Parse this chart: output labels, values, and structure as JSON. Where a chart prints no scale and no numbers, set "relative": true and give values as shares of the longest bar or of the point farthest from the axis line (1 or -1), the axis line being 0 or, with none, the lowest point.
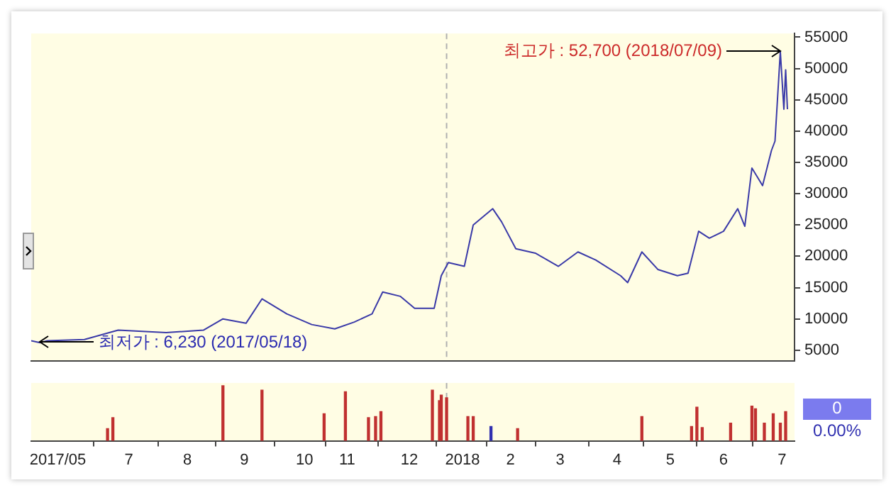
{
  "chart_data": [
    {
      "type": "line",
      "x": [
        "2017-05-13",
        "2017-05-18",
        "2017-05-22",
        "2017-06-12",
        "2017-07-01",
        "2017-07-28",
        "2017-08-18",
        "2017-08-29",
        "2017-09-11",
        "2017-09-20",
        "2017-10-04",
        "2017-10-18",
        "2017-10-31",
        "2017-11-11",
        "2017-11-21",
        "2017-11-27",
        "2017-12-07",
        "2017-12-15",
        "2017-12-26",
        "2017-12-30",
        "2018-01-03",
        "2018-01-12",
        "2018-01-17",
        "2018-01-28",
        "2018-02-02",
        "2018-02-10",
        "2018-02-21",
        "2018-03-06",
        "2018-03-17",
        "2018-03-27",
        "2018-04-10",
        "2018-04-14",
        "2018-04-22",
        "2018-05-01",
        "2018-05-12",
        "2018-05-18",
        "2018-05-24",
        "2018-05-30",
        "2018-06-07",
        "2018-06-15",
        "2018-06-19",
        "2018-06-23",
        "2018-06-29",
        "2018-07-04",
        "2018-07-06",
        "2018-07-09",
        "2018-07-11",
        "2018-07-12",
        "2018-07-13"
      ],
      "values": [
        6500,
        6200,
        6500,
        6700,
        8200,
        7800,
        8200,
        10000,
        9300,
        13200,
        10800,
        9100,
        8400,
        9500,
        10800,
        14300,
        13600,
        11700,
        11700,
        16900,
        19000,
        18400,
        25000,
        27600,
        25500,
        21200,
        20500,
        18400,
        20700,
        19400,
        16900,
        15800,
        20700,
        17900,
        16900,
        17300,
        24000,
        22900,
        24000,
        27600,
        24800,
        34100,
        31300,
        36900,
        38400,
        52700,
        43500,
        49800,
        43500
      ],
      "color": "#3a3aa8",
      "marker": "none",
      "xlim": [
        "2017-05-13",
        "2018-07-17"
      ],
      "ylim": [
        3300,
        55600
      ],
      "yticks": [
        5000,
        10000,
        15000,
        20000,
        25000,
        30000,
        35000,
        40000,
        45000,
        50000,
        55000
      ],
      "tick_labels": "y",
      "grid": false,
      "legend": false,
      "ref_lines": [
        {
          "axis": "x",
          "value": "2018-01-02",
          "color": "#b0b0b0",
          "line_style": "dashed"
        }
      ],
      "annotations": [
        {
          "text": "최고가 : 52,700 (2018/07/09)",
          "x": "2018-07-09",
          "y": 52700
        },
        {
          "text": "최저가 : 6,230 (2017/05/18)",
          "x": "2017-05-18",
          "y": 6230
        }
      ]
    },
    {
      "type": "bar",
      "relative": true,
      "x": [
        "2017-06-25",
        "2017-06-28",
        "2017-08-29",
        "2017-09-20",
        "2017-10-25",
        "2017-11-06",
        "2017-11-19",
        "2017-11-23",
        "2017-11-26",
        "2017-12-25",
        "2017-12-29",
        "2017-12-30",
        "2018-01-02",
        "2018-01-14",
        "2018-01-17",
        "2018-01-27",
        "2018-02-11",
        "2018-04-22",
        "2018-05-20",
        "2018-05-23",
        "2018-05-26",
        "2018-06-11",
        "2018-06-23",
        "2018-06-25",
        "2018-06-30",
        "2018-07-05",
        "2018-07-09",
        "2018-07-12"
      ],
      "values": [
        0.22,
        0.42,
        1,
        0.92,
        0.49,
        0.89,
        0.42,
        0.44,
        0.53,
        0.92,
        0.73,
        0.83,
        0.78,
        0.44,
        0.44,
        0.26,
        0.22,
        0.44,
        0.26,
        0.61,
        0.24,
        0.32,
        0.63,
        0.58,
        0.32,
        0.49,
        0.32,
        0.53
      ],
      "colors": [
        "#c03030",
        "#c03030",
        "#c03030",
        "#c03030",
        "#c03030",
        "#c03030",
        "#c03030",
        "#c03030",
        "#c03030",
        "#c03030",
        "#c03030",
        "#c03030",
        "#c03030",
        "#c03030",
        "#c03030",
        "#3030b0",
        "#c03030",
        "#c03030",
        "#c03030",
        "#c03030",
        "#c03030",
        "#c03030",
        "#c03030",
        "#c03030",
        "#c03030",
        "#c03030",
        "#c03030",
        "#c03030"
      ],
      "xlim": [
        "2017-05-13",
        "2018-07-17"
      ],
      "xticks": [
        {
          "value": "2017-05-28",
          "label": "2017/05"
        },
        {
          "value": "2017-07-07",
          "label": "7"
        },
        {
          "value": "2017-08-09",
          "label": "8"
        },
        {
          "value": "2017-09-10",
          "label": "9"
        },
        {
          "value": "2017-10-14",
          "label": "10"
        },
        {
          "value": "2017-11-07",
          "label": "11"
        },
        {
          "value": "2017-12-12",
          "label": "12"
        },
        {
          "value": "2018-01-11",
          "label": "2018"
        },
        {
          "value": "2018-02-07",
          "label": "2"
        },
        {
          "value": "2018-03-07",
          "label": "3"
        },
        {
          "value": "2018-04-08",
          "label": "4"
        },
        {
          "value": "2018-05-08",
          "label": "5"
        },
        {
          "value": "2018-06-07",
          "label": "6"
        },
        {
          "value": "2018-07-10",
          "label": "7"
        }
      ],
      "tick_labels": "x",
      "grid": false,
      "legend": false,
      "ref_lines": [
        {
          "axis": "x",
          "value": "2018-01-02",
          "color": "#b0b0b0",
          "line_style": "dashed"
        }
      ],
      "annotations": [
        "0",
        "0.00%"
      ]
    }
  ]
}
